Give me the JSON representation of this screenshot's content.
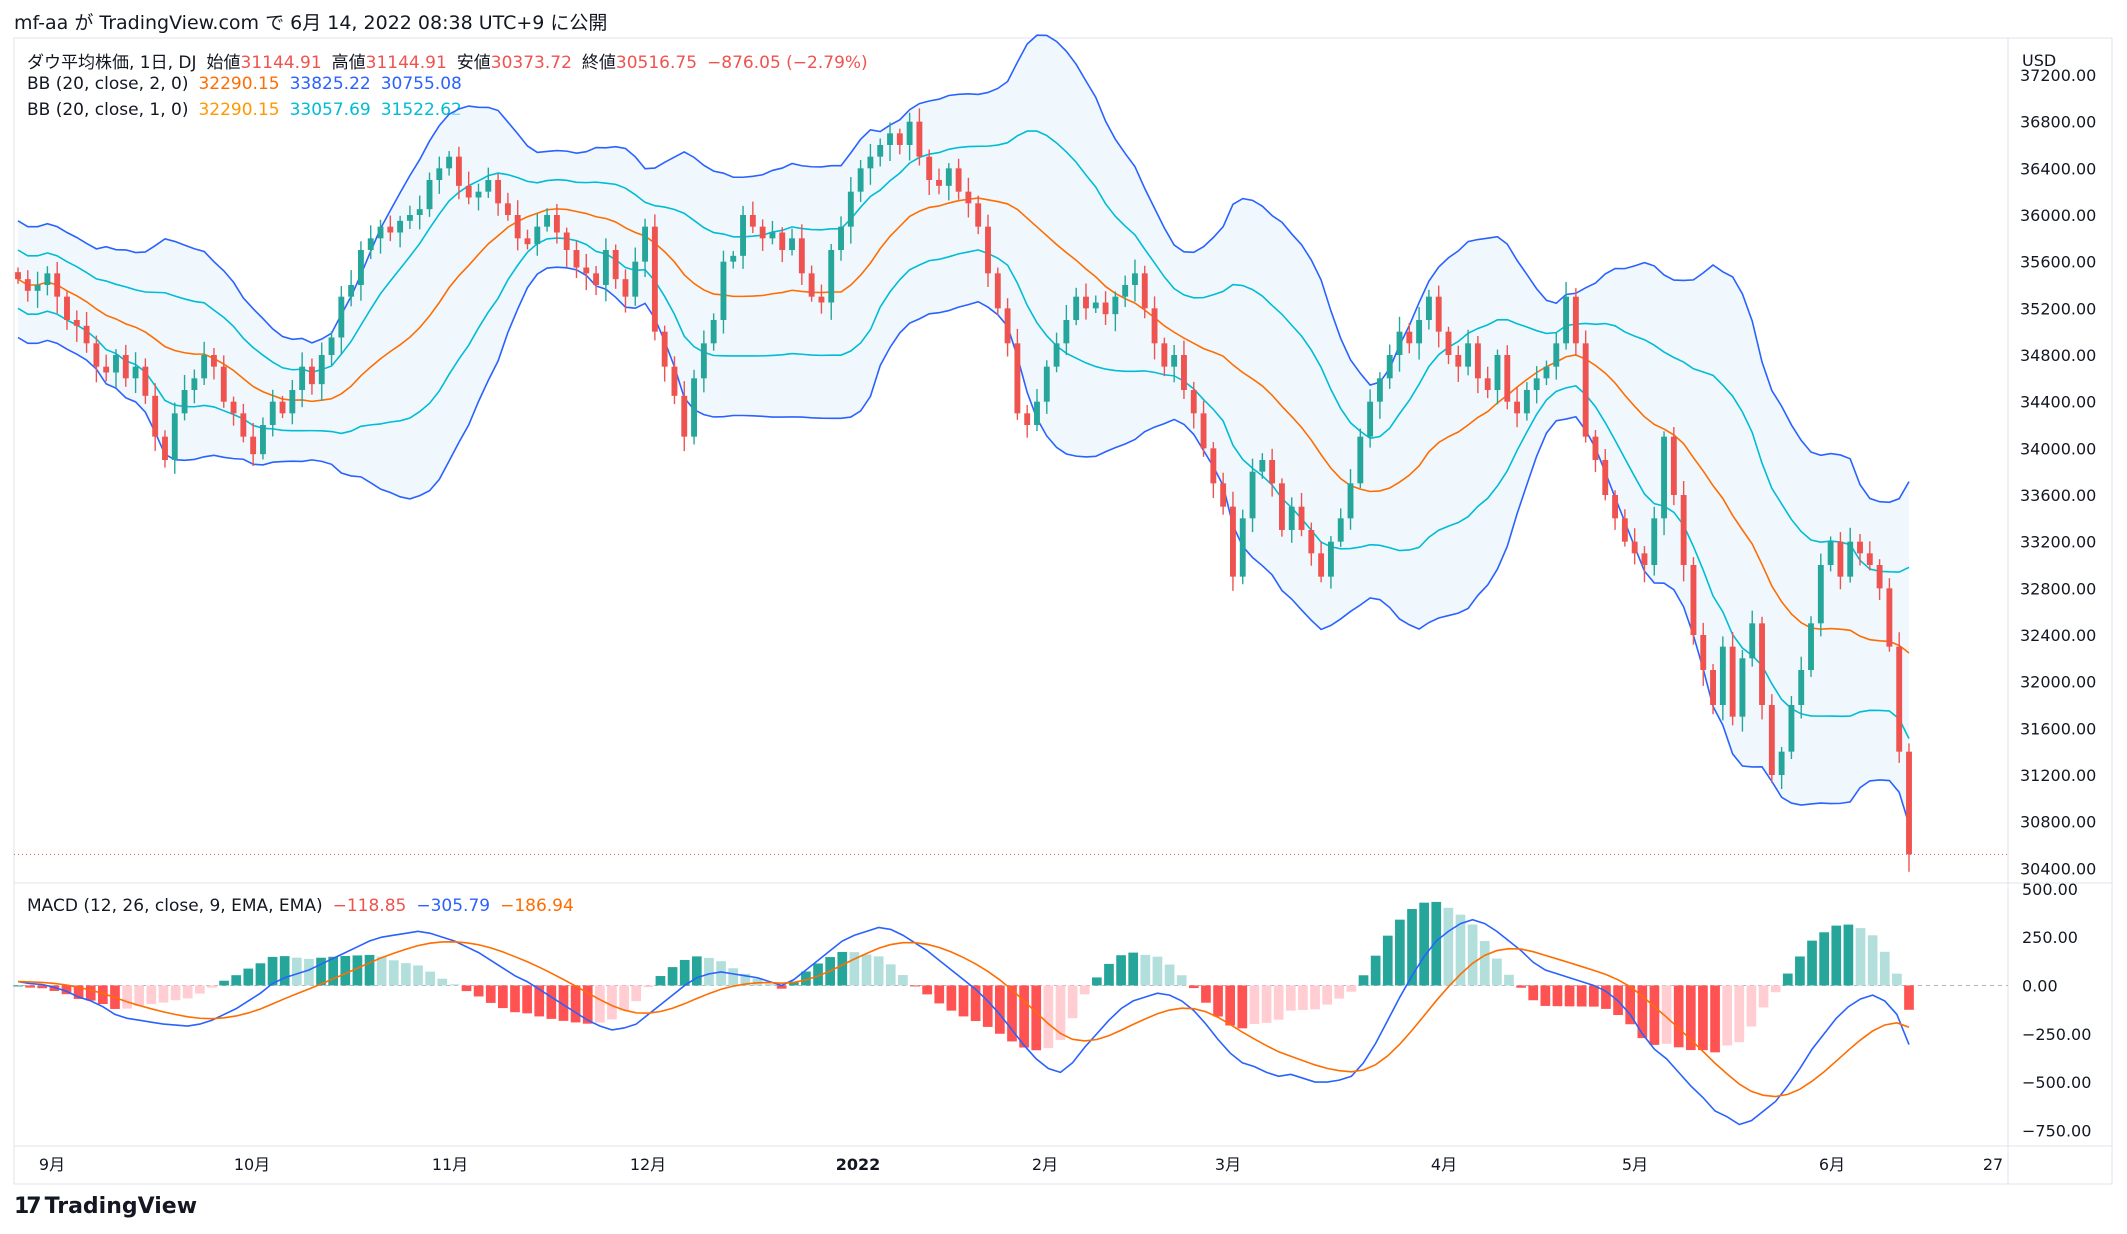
{
  "header": {
    "text": "mf-aa が TradingView.com で 6月 14, 2022 08:38 UTC+9 に公開"
  },
  "legend": {
    "main": {
      "title": "ダウ平均株価, 1日, DJ",
      "open_label": "始値",
      "open": "31144.91",
      "high_label": "高値",
      "high": "31144.91",
      "low_label": "安値",
      "low": "30373.72",
      "close_label": "終値",
      "close": "30516.75",
      "change": "−876.05 (−2.79%)"
    },
    "bb2": {
      "label": "BB (20, close, 2, 0)",
      "basis": "32290.15",
      "upper": "33825.22",
      "lower": "30755.08"
    },
    "bb1": {
      "label": "BB (20, close, 1, 0)",
      "basis": "32290.15",
      "upper": "33057.69",
      "lower": "31522.62"
    },
    "macd": {
      "label": "MACD (12, 26, close, 9, EMA, EMA)",
      "hist": "−118.85",
      "macd": "−305.79",
      "signal": "−186.94"
    }
  },
  "price_axis": {
    "currency": "USD",
    "ticks": [
      "37200.00",
      "36800.00",
      "36400.00",
      "36000.00",
      "35600.00",
      "35200.00",
      "34800.00",
      "34400.00",
      "34000.00",
      "33600.00",
      "33200.00",
      "32800.00",
      "32400.00",
      "32000.00",
      "31600.00",
      "31200.00",
      "30800.00",
      "30400.00"
    ]
  },
  "macd_axis": {
    "ticks": [
      "500.00",
      "250.00",
      "0.00",
      "−250.00",
      "−500.00",
      "−750.00"
    ]
  },
  "time_axis": {
    "labels": [
      "9月",
      "10月",
      "11月",
      "12月",
      "2022",
      "2月",
      "3月",
      "4月",
      "5月",
      "6月",
      "27"
    ]
  },
  "footer": {
    "brand": "TradingView"
  },
  "colors": {
    "up": "#26a69a",
    "down": "#ef5350",
    "bb_outer": "#2962ff",
    "bb_inner": "#00bcd4",
    "basis": "#ff6d00",
    "macd": "#2962ff",
    "signal": "#ff6d00",
    "fill": "#e3f2fd"
  },
  "chart_data": {
    "type": "candlestick",
    "price_range": [
      30300,
      37500
    ],
    "macd_range": [
      -800,
      520
    ],
    "close_series": [
      35450,
      35350,
      35400,
      35500,
      35300,
      35100,
      35050,
      34900,
      34700,
      34650,
      34800,
      34600,
      34700,
      34450,
      34100,
      33900,
      34300,
      34500,
      34600,
      34800,
      34700,
      34400,
      34300,
      34100,
      33950,
      34200,
      34400,
      34300,
      34500,
      34700,
      34550,
      34800,
      34950,
      35300,
      35400,
      35700,
      35800,
      35900,
      35850,
      35950,
      36000,
      36050,
      36300,
      36400,
      36500,
      36250,
      36150,
      36200,
      36300,
      36100,
      36000,
      35800,
      35750,
      35900,
      36000,
      35850,
      35700,
      35550,
      35500,
      35400,
      35700,
      35450,
      35300,
      35600,
      35900,
      35000,
      34700,
      34450,
      34100,
      34600,
      34900,
      35100,
      35600,
      35650,
      36000,
      35900,
      35800,
      35850,
      35700,
      35800,
      35500,
      35300,
      35250,
      35700,
      35900,
      36200,
      36400,
      36500,
      36600,
      36700,
      36600,
      36800,
      36500,
      36300,
      36250,
      36400,
      36200,
      36100,
      35900,
      35500,
      35200,
      34900,
      34300,
      34200,
      34400,
      34700,
      34900,
      35100,
      35300,
      35200,
      35250,
      35150,
      35300,
      35400,
      35500,
      35200,
      34900,
      34700,
      34800,
      34500,
      34300,
      34000,
      33700,
      33500,
      32900,
      33400,
      33800,
      33900,
      33700,
      33300,
      33500,
      33300,
      33100,
      32900,
      33200,
      33400,
      33700,
      34100,
      34400,
      34600,
      34800,
      35000,
      34900,
      35100,
      35300,
      35000,
      34800,
      34700,
      34900,
      34600,
      34500,
      34800,
      34400,
      34300,
      34500,
      34600,
      34700,
      34900,
      35300,
      34900,
      34100,
      33900,
      33600,
      33400,
      33200,
      33100,
      33000,
      33400,
      34100,
      33600,
      33000,
      32400,
      32100,
      31800,
      32300,
      31700,
      32200,
      32500,
      31800,
      31200,
      31400,
      31800,
      32100,
      32500,
      33000,
      33200,
      32900,
      33200,
      33100,
      33000,
      32800,
      32300,
      31400,
      30520
    ],
    "macd_series": [
      20,
      10,
      5,
      -10,
      -30,
      -60,
      -80,
      -110,
      -150,
      -170,
      -180,
      -190,
      -200,
      -205,
      -210,
      -200,
      -180,
      -150,
      -120,
      -80,
      -40,
      10,
      40,
      60,
      80,
      110,
      140,
      170,
      200,
      230,
      250,
      260,
      270,
      280,
      270,
      250,
      230,
      200,
      170,
      130,
      90,
      50,
      20,
      -20,
      -60,
      -100,
      -140,
      -180,
      -210,
      -230,
      -220,
      -200,
      -150,
      -100,
      -50,
      0,
      40,
      60,
      70,
      60,
      50,
      40,
      20,
      0,
      30,
      80,
      130,
      180,
      230,
      260,
      280,
      300,
      290,
      260,
      220,
      180,
      130,
      80,
      30,
      -20,
      -80,
      -150,
      -230,
      -310,
      -380,
      -430,
      -450,
      -400,
      -320,
      -250,
      -180,
      -120,
      -80,
      -60,
      -40,
      -50,
      -80,
      -130,
      -200,
      -280,
      -350,
      -400,
      -420,
      -450,
      -470,
      -460,
      -480,
      -500,
      -500,
      -490,
      -470,
      -400,
      -300,
      -180,
      -60,
      50,
      150,
      230,
      280,
      320,
      340,
      320,
      280,
      230,
      180,
      120,
      80,
      60,
      40,
      20,
      0,
      -30,
      -80,
      -150,
      -250,
      -330,
      -380,
      -450,
      -520,
      -580,
      -650,
      -680,
      -720,
      -700,
      -650,
      -600,
      -520,
      -430,
      -330,
      -250,
      -170,
      -110,
      -70,
      -50,
      -80,
      -150,
      -306
    ]
  }
}
